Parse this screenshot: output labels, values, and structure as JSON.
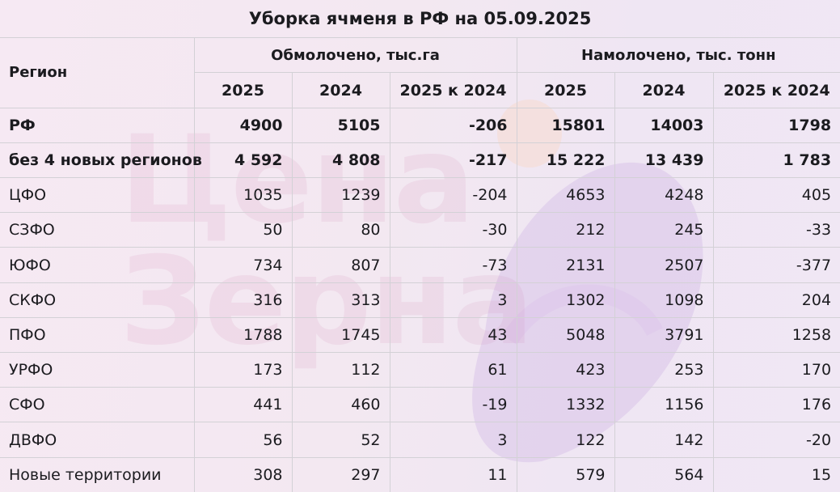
{
  "title": "Уборка ячменя в РФ на 05.09.2025",
  "watermark": "Цена\nЗерна",
  "header": {
    "region_label": "Регион",
    "group_threshed": "Обмолочено, тыс.га",
    "group_harvested": "Намолочено, тыс. тонн",
    "years": [
      "2025",
      "2024",
      "2025 к 2024",
      "2025",
      "2024",
      "2025 к 2024"
    ]
  },
  "rows": [
    {
      "region": "РФ",
      "bold": true,
      "values": [
        "4900",
        "5105",
        "-206",
        "15801",
        "14003",
        "1798"
      ]
    },
    {
      "region": "без 4 новых регионов",
      "bold": true,
      "values": [
        "4 592",
        "4 808",
        "-217",
        "15 222",
        "13 439",
        "1 783"
      ]
    },
    {
      "region": "ЦФО",
      "bold": false,
      "values": [
        "1035",
        "1239",
        "-204",
        "4653",
        "4248",
        "405"
      ]
    },
    {
      "region": "СЗФО",
      "bold": false,
      "values": [
        "50",
        "80",
        "-30",
        "212",
        "245",
        "-33"
      ]
    },
    {
      "region": "ЮФО",
      "bold": false,
      "values": [
        "734",
        "807",
        "-73",
        "2131",
        "2507",
        "-377"
      ]
    },
    {
      "region": "СКФО",
      "bold": false,
      "values": [
        "316",
        "313",
        "3",
        "1302",
        "1098",
        "204"
      ]
    },
    {
      "region": "ПФО",
      "bold": false,
      "values": [
        "1788",
        "1745",
        "43",
        "5048",
        "3791",
        "1258"
      ]
    },
    {
      "region": "УРФО",
      "bold": false,
      "values": [
        "173",
        "112",
        "61",
        "423",
        "253",
        "170"
      ]
    },
    {
      "region": "СФО",
      "bold": false,
      "values": [
        "441",
        "460",
        "-19",
        "1332",
        "1156",
        "176"
      ]
    },
    {
      "region": "ДВФО",
      "bold": false,
      "values": [
        "56",
        "52",
        "3",
        "122",
        "142",
        "-20"
      ]
    },
    {
      "region": "Новые территории",
      "bold": false,
      "values": [
        "308",
        "297",
        "11",
        "579",
        "564",
        "15"
      ]
    }
  ]
}
